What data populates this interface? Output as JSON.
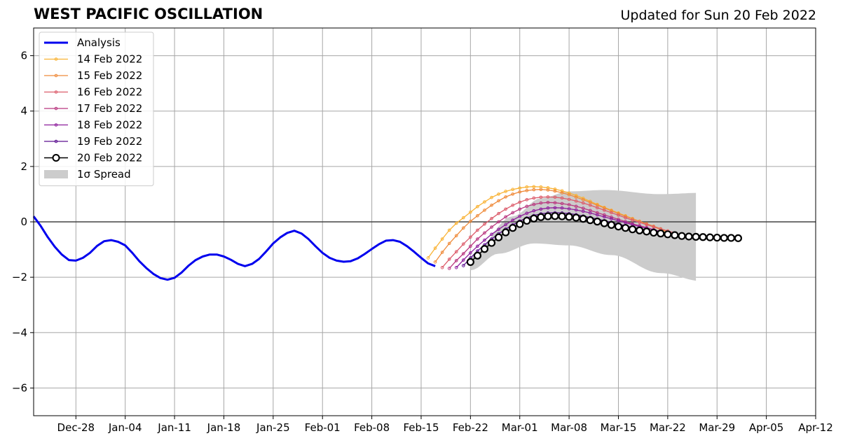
{
  "chart_data": {
    "type": "line",
    "title": "WEST PACIFIC OSCILLATION",
    "subtitle": "Updated for Sun 20 Feb 2022",
    "xlabel": "",
    "ylabel": "",
    "ylim": [
      -7,
      7
    ],
    "yticks": [
      -6,
      -4,
      -2,
      0,
      2,
      4,
      6
    ],
    "ytick_labels": [
      "−6",
      "−4",
      "−2",
      "0",
      "2",
      "4",
      "6"
    ],
    "xlim": [
      "2021-12-22",
      "2022-04-12"
    ],
    "xticks": [
      "2021-12-28",
      "2022-01-04",
      "2022-01-11",
      "2022-01-18",
      "2022-01-25",
      "2022-02-01",
      "2022-02-08",
      "2022-02-15",
      "2022-02-22",
      "2022-03-01",
      "2022-03-08",
      "2022-03-15",
      "2022-03-22",
      "2022-03-29",
      "2022-04-05",
      "2022-04-12"
    ],
    "xtick_labels": [
      "Dec-28",
      "Jan-04",
      "Jan-11",
      "Jan-18",
      "Jan-25",
      "Feb-01",
      "Feb-08",
      "Feb-15",
      "Feb-22",
      "Mar-01",
      "Mar-08",
      "Mar-15",
      "Mar-22",
      "Mar-29",
      "Apr-05",
      "Apr-12"
    ],
    "grid": true,
    "legend_position": "top-left",
    "analysis": {
      "name": "Analysis",
      "color": "#0000ee",
      "dates": [
        "2021-12-22",
        "2021-12-23",
        "2021-12-24",
        "2021-12-25",
        "2021-12-26",
        "2021-12-27",
        "2021-12-28",
        "2021-12-29",
        "2021-12-30",
        "2021-12-31",
        "2022-01-01",
        "2022-01-02",
        "2022-01-03",
        "2022-01-04",
        "2022-01-05",
        "2022-01-06",
        "2022-01-07",
        "2022-01-08",
        "2022-01-09",
        "2022-01-10",
        "2022-01-11",
        "2022-01-12",
        "2022-01-13",
        "2022-01-14",
        "2022-01-15",
        "2022-01-16",
        "2022-01-17",
        "2022-01-18",
        "2022-01-19",
        "2022-01-20",
        "2022-01-21",
        "2022-01-22",
        "2022-01-23",
        "2022-01-24",
        "2022-01-25",
        "2022-01-26",
        "2022-01-27",
        "2022-01-28",
        "2022-01-29",
        "2022-01-30",
        "2022-01-31",
        "2022-02-01",
        "2022-02-02",
        "2022-02-03",
        "2022-02-04",
        "2022-02-05",
        "2022-02-06",
        "2022-02-07",
        "2022-02-08",
        "2022-02-09",
        "2022-02-10",
        "2022-02-11",
        "2022-02-12",
        "2022-02-13",
        "2022-02-14",
        "2022-02-15",
        "2022-02-16",
        "2022-02-17"
      ],
      "values": [
        0.2,
        -0.15,
        -0.55,
        -0.9,
        -1.18,
        -1.38,
        -1.4,
        -1.3,
        -1.12,
        -0.87,
        -0.7,
        -0.66,
        -0.72,
        -0.85,
        -1.12,
        -1.42,
        -1.67,
        -1.88,
        -2.03,
        -2.09,
        -2.02,
        -1.83,
        -1.58,
        -1.38,
        -1.25,
        -1.18,
        -1.18,
        -1.25,
        -1.37,
        -1.52,
        -1.6,
        -1.52,
        -1.34,
        -1.07,
        -0.78,
        -0.56,
        -0.4,
        -0.32,
        -0.42,
        -0.62,
        -0.88,
        -1.12,
        -1.3,
        -1.4,
        -1.44,
        -1.42,
        -1.32,
        -1.16,
        -0.98,
        -0.81,
        -0.68,
        -0.66,
        -0.72,
        -0.88,
        -1.08,
        -1.3,
        -1.5,
        -1.6
      ]
    },
    "series": [
      {
        "name": "14 Feb 2022",
        "color": "#f9b233",
        "start": "2022-02-16",
        "values": [
          -1.3,
          -0.95,
          -0.62,
          -0.3,
          -0.05,
          0.15,
          0.35,
          0.55,
          0.72,
          0.88,
          1.0,
          1.1,
          1.17,
          1.22,
          1.26,
          1.27,
          1.26,
          1.23,
          1.18,
          1.12,
          1.04,
          0.95,
          0.85,
          0.74,
          0.63,
          0.52,
          0.42,
          0.32,
          0.22,
          0.12,
          0.02,
          -0.08,
          -0.18,
          -0.28,
          -0.37
        ]
      },
      {
        "name": "15 Feb 2022",
        "color": "#ef8a3a",
        "start": "2022-02-17",
        "values": [
          -1.45,
          -1.1,
          -0.78,
          -0.5,
          -0.22,
          0.02,
          0.22,
          0.42,
          0.6,
          0.76,
          0.9,
          1.0,
          1.08,
          1.13,
          1.16,
          1.17,
          1.15,
          1.11,
          1.05,
          0.98,
          0.89,
          0.8,
          0.7,
          0.6,
          0.5,
          0.4,
          0.3,
          0.2,
          0.11,
          0.02,
          -0.07,
          -0.16,
          -0.25,
          -0.33
        ]
      },
      {
        "name": "16 Feb 2022",
        "color": "#dc5c6b",
        "start": "2022-02-18",
        "values": [
          -1.65,
          -1.35,
          -1.08,
          -0.8,
          -0.55,
          -0.3,
          -0.08,
          0.12,
          0.3,
          0.46,
          0.6,
          0.71,
          0.8,
          0.86,
          0.89,
          0.9,
          0.89,
          0.86,
          0.81,
          0.75,
          0.68,
          0.6,
          0.51,
          0.42,
          0.33,
          0.24,
          0.15,
          0.06,
          -0.02,
          -0.1,
          -0.18,
          -0.26,
          -0.33,
          -0.4
        ]
      },
      {
        "name": "17 Feb 2022",
        "color": "#b9367f",
        "start": "2022-02-19",
        "values": [
          -1.68,
          -1.4,
          -1.15,
          -0.88,
          -0.62,
          -0.4,
          -0.19,
          0.0,
          0.18,
          0.33,
          0.46,
          0.56,
          0.63,
          0.68,
          0.7,
          0.69,
          0.66,
          0.62,
          0.56,
          0.49,
          0.41,
          0.33,
          0.25,
          0.17,
          0.09,
          0.01,
          -0.07,
          -0.14,
          -0.21,
          -0.28,
          -0.35,
          -0.42,
          -0.48
        ]
      },
      {
        "name": "18 Feb 2022",
        "color": "#8d1d9c",
        "start": "2022-02-20",
        "values": [
          -1.65,
          -1.38,
          -1.12,
          -0.88,
          -0.66,
          -0.45,
          -0.27,
          -0.1,
          0.06,
          0.2,
          0.31,
          0.4,
          0.46,
          0.5,
          0.51,
          0.5,
          0.47,
          0.43,
          0.38,
          0.32,
          0.25,
          0.18,
          0.11,
          0.04,
          -0.03,
          -0.1,
          -0.17,
          -0.23,
          -0.29,
          -0.35,
          -0.41,
          -0.46
        ]
      },
      {
        "name": "19 Feb 2022",
        "color": "#5a0f8f",
        "start": "2022-02-21",
        "values": [
          -1.58,
          -1.3,
          -1.05,
          -0.83,
          -0.62,
          -0.43,
          -0.26,
          -0.11,
          0.03,
          0.14,
          0.23,
          0.29,
          0.32,
          0.33,
          0.32,
          0.3,
          0.26,
          0.21,
          0.16,
          0.1,
          0.04,
          -0.02,
          -0.08,
          -0.14,
          -0.2,
          -0.25,
          -0.3,
          -0.35,
          -0.4,
          -0.44,
          -0.48
        ]
      },
      {
        "name": "20 Feb 2022",
        "color": "#000000",
        "start": "2022-02-22",
        "values": [
          -1.45,
          -1.22,
          -0.98,
          -0.76,
          -0.56,
          -0.38,
          -0.22,
          -0.08,
          0.04,
          0.12,
          0.17,
          0.2,
          0.21,
          0.2,
          0.18,
          0.15,
          0.11,
          0.06,
          0.01,
          -0.05,
          -0.11,
          -0.17,
          -0.22,
          -0.27,
          -0.31,
          -0.35,
          -0.39,
          -0.42,
          -0.45,
          -0.48,
          -0.51,
          -0.53,
          -0.54,
          -0.55,
          -0.56,
          -0.57,
          -0.58,
          -0.58,
          -0.59
        ]
      }
    ],
    "spread": {
      "name": "1σ Spread",
      "color": "#cccccc",
      "start": "2022-02-22",
      "end": "2022-03-26",
      "upper_points": [
        [
          0,
          -1.25
        ],
        [
          6,
          0.2
        ],
        [
          10,
          0.85
        ],
        [
          14,
          1.1
        ],
        [
          19,
          1.15
        ],
        [
          27,
          1.0
        ],
        [
          33,
          1.05
        ]
      ],
      "lower_points": [
        [
          0,
          -1.75
        ],
        [
          4,
          -1.15
        ],
        [
          9,
          -0.78
        ],
        [
          14,
          -0.85
        ],
        [
          20,
          -1.2
        ],
        [
          27,
          -1.85
        ],
        [
          33,
          -2.15
        ]
      ]
    }
  }
}
